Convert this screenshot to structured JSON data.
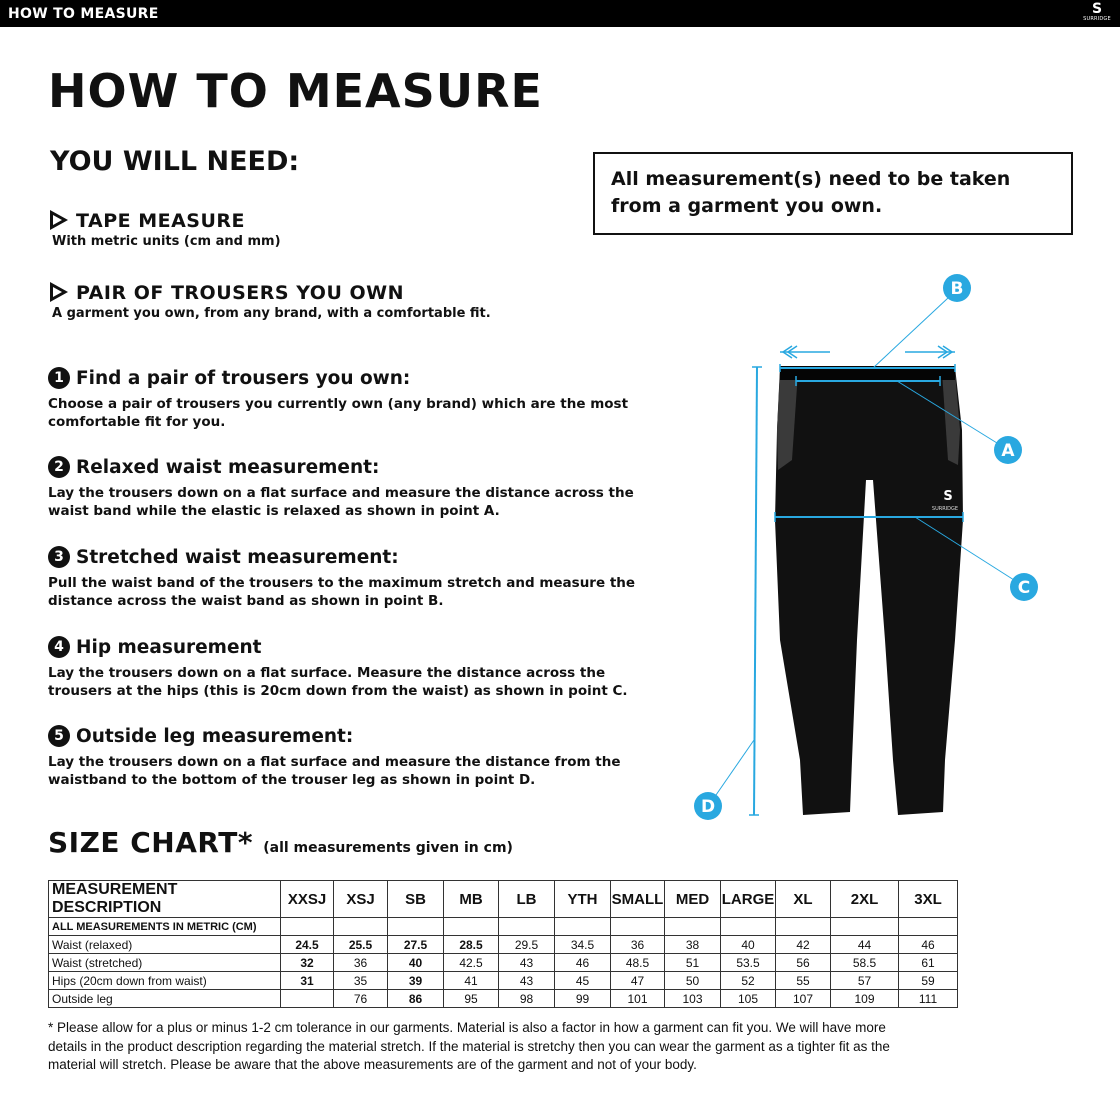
{
  "header": {
    "title": "HOW TO MEASURE",
    "logo_text": "SURRIDGE"
  },
  "title": "HOW TO MEASURE",
  "need_title": "YOU WILL NEED:",
  "requirements": [
    {
      "title": "TAPE MEASURE",
      "subtitle": "With metric units (cm and mm)"
    },
    {
      "title": "PAIR OF TROUSERS YOU OWN",
      "subtitle": "A garment you own, from any brand, with a comfortable fit."
    }
  ],
  "note": "All measurement(s) need to be taken from a garment you own.",
  "steps": [
    {
      "num": "1",
      "title": "Find a pair of trousers you own:",
      "text": "Choose a pair of trousers you currently own (any brand) which are the most comfortable fit for you."
    },
    {
      "num": "2",
      "title": "Relaxed waist measurement:",
      "text": "Lay the trousers down on a flat surface and measure the distance across the waist band while the elastic is relaxed as shown in point A."
    },
    {
      "num": "3",
      "title": "Stretched waist measurement:",
      "text": "Pull the waist band of the trousers to the maximum stretch and measure the distance across the waist band as shown in point B."
    },
    {
      "num": "4",
      "title": "Hip measurement",
      "text": "Lay the trousers down on a flat surface. Measure the distance across the trousers at the hips (this is 20cm down from the waist)  as shown in point C."
    },
    {
      "num": "5",
      "title": "Outside leg measurement:",
      "text": "Lay the trousers down on a flat surface and measure the distance from the waistband to the bottom of the trouser  leg as shown in point D."
    }
  ],
  "diagram": {
    "labels": [
      "A",
      "B",
      "C",
      "D"
    ],
    "accent": "#29a8e0",
    "garment_logo": "SURRIDGE"
  },
  "size_chart": {
    "title": "SIZE CHART",
    "asterisk": "*",
    "subtitle": "(all measurements given in cm)",
    "columns": [
      "MEASUREMENT DESCRIPTION",
      "XXSJ",
      "XSJ",
      "SB",
      "MB",
      "LB",
      "YTH",
      "SMALL",
      "MED",
      "LARGE",
      "XL",
      "2XL",
      "3XL"
    ],
    "rows": [
      [
        "ALL MEASUREMENTS IN METRIC (CM)",
        "",
        "",
        "",
        "",
        "",
        "",
        "",
        "",
        "",
        "",
        "",
        ""
      ],
      [
        "Waist (relaxed)",
        "24.5",
        "25.5",
        "27.5",
        "28.5",
        "29.5",
        "34.5",
        "36",
        "38",
        "40",
        "42",
        "44",
        "46"
      ],
      [
        "Waist (stretched)",
        "32",
        "36",
        "40",
        "42.5",
        "43",
        "46",
        "48.5",
        "51",
        "53.5",
        "56",
        "58.5",
        "61"
      ],
      [
        "Hips (20cm down from waist)",
        "31",
        "35",
        "39",
        "41",
        "43",
        "45",
        "47",
        "50",
        "52",
        "55",
        "57",
        "59"
      ],
      [
        "Outside leg",
        "",
        "76",
        "86",
        "95",
        "98",
        "99",
        "101",
        "103",
        "105",
        "107",
        "109",
        "111"
      ]
    ]
  },
  "footnote": "* Please allow for a plus or minus 1-2 cm tolerance in our garments. Material is also a factor in how a garment can fit you. We will have more details in the product description regarding the material stretch.  If the material is stretchy then you can wear the garment as a tighter fit as the material will stretch.  Please be aware that the above measurements are of the garment and not of your body."
}
